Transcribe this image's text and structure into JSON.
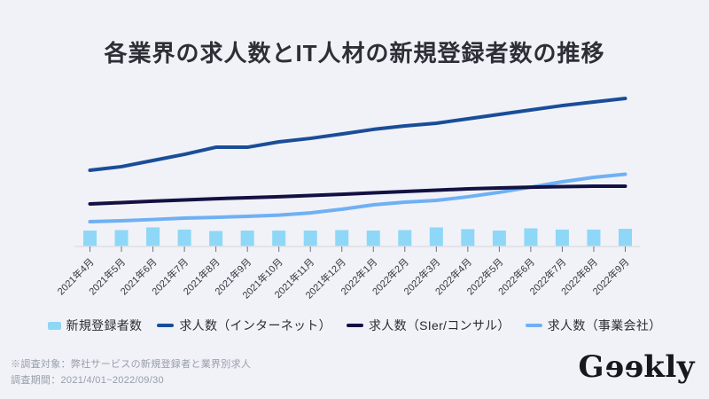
{
  "title": "各業界の求人数とIT人材の新規登録者数の推移",
  "colors": {
    "background": "#f0f2f8",
    "title_text": "#2e2f36",
    "axis_line": "#dde0e6",
    "tick": "#6f727c",
    "axis_label": "#35373f",
    "legend_text": "#2b2c33",
    "footnote_text": "#989da7",
    "logo_text": "#17171f"
  },
  "chart_data": {
    "type": "combo",
    "title": "各業界の求人数とIT人材の新規登録者数の推移",
    "categories": [
      "2021年4月",
      "2021年5月",
      "2021年6月",
      "2021年7月",
      "2021年8月",
      "2021年9月",
      "2021年10月",
      "2021年11月",
      "2021年12月",
      "2022年1月",
      "2022年2月",
      "2022年3月",
      "2022年4月",
      "2022年5月",
      "2022年6月",
      "2022年7月",
      "2022年8月",
      "2022年9月"
    ],
    "series": [
      {
        "id": "registrations",
        "name": "新規登録者数",
        "type": "bar",
        "color": "#8ed7f7",
        "values": [
          10.1,
          10.4,
          12.1,
          10.7,
          9.8,
          10.1,
          10.1,
          10.1,
          10.4,
          10.1,
          10.4,
          12.1,
          11.0,
          10.1,
          11.5,
          10.7,
          10.7,
          11.2
        ]
      },
      {
        "id": "internet",
        "name": "求人数（インターネット）",
        "type": "line",
        "color": "#1a4d98",
        "values": [
          48.3,
          50.6,
          54.5,
          58.4,
          62.9,
          62.9,
          66.3,
          68.5,
          71.3,
          74.2,
          76.4,
          78.1,
          80.9,
          83.7,
          86.5,
          89.3,
          91.6,
          93.8
        ]
      },
      {
        "id": "sier",
        "name": "求人数（SIer/コンサル）",
        "type": "line",
        "color": "#131143",
        "values": [
          27.0,
          27.8,
          28.7,
          29.5,
          30.3,
          30.9,
          31.5,
          32.3,
          33.1,
          34.0,
          34.8,
          35.7,
          36.5,
          37.1,
          37.6,
          37.9,
          38.2,
          38.2
        ]
      },
      {
        "id": "company",
        "name": "求人数（事業会社）",
        "type": "line",
        "color": "#6fb0f4",
        "values": [
          15.7,
          16.3,
          17.1,
          18.0,
          18.5,
          19.1,
          19.9,
          21.3,
          23.6,
          26.4,
          28.1,
          29.2,
          31.5,
          34.3,
          37.6,
          41.0,
          43.8,
          45.8
        ]
      }
    ],
    "ylim": [
      0,
      100
    ],
    "y_axis_visible": false,
    "grid": false,
    "legend_position": "bottom",
    "x_label_rotation": -45,
    "value_note": "y-axis unlabeled in source; values are relative estimates on a 0-100 scale"
  },
  "footnote": {
    "line1": "※調査対象：弊社サービスの新規登録者と業界別求人",
    "line2": "調査期間：2021/4/01~2022/09/30"
  },
  "logo": {
    "text": "Geekly",
    "part_g": "G",
    "part_e1": "e",
    "part_e2": "e",
    "part_rest": "kly"
  }
}
